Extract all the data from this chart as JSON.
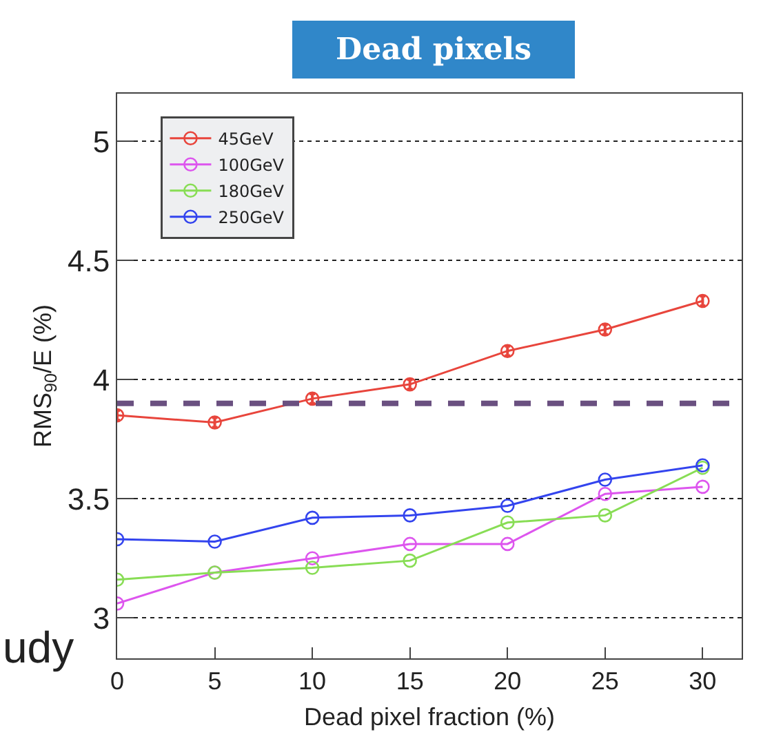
{
  "chart_data": {
    "type": "line",
    "title": "Dead pixels",
    "xlabel": "Dead pixel fraction (%)",
    "ylabel": "RMS$_{90}$/E (%)",
    "x": [
      0,
      5,
      10,
      15,
      20,
      25,
      30
    ],
    "series": [
      {
        "name": "45GeV",
        "color": "#e8453c",
        "values": [
          3.85,
          3.82,
          3.92,
          3.98,
          4.12,
          4.21,
          4.33
        ],
        "errors": [
          0.02,
          0.02,
          0.02,
          0.02,
          0.02,
          0.02,
          0.02
        ]
      },
      {
        "name": "100GeV",
        "color": "#dd55ee",
        "values": [
          3.06,
          3.19,
          3.25,
          3.31,
          3.31,
          3.52,
          3.55
        ]
      },
      {
        "name": "180GeV",
        "color": "#88dd55",
        "values": [
          3.16,
          3.19,
          3.21,
          3.24,
          3.4,
          3.43,
          3.63
        ]
      },
      {
        "name": "250GeV",
        "color": "#3344ee",
        "values": [
          3.33,
          3.32,
          3.42,
          3.43,
          3.47,
          3.58,
          3.64
        ]
      }
    ],
    "xlim": [
      0,
      32
    ],
    "xticks": [
      0,
      5,
      10,
      15,
      20,
      25,
      30
    ],
    "ylim": [
      2.83,
      5.2
    ],
    "yticks": [
      3,
      3.5,
      4,
      4.5,
      5
    ],
    "ref_lines": [
      {
        "axis": "y",
        "value": 3.9,
        "color": "#6a5080",
        "line_style": "dashed"
      }
    ],
    "annotations": [
      "udy"
    ],
    "grid": "y",
    "legend": "top left",
    "marker": "circle",
    "line_style": "solid"
  }
}
